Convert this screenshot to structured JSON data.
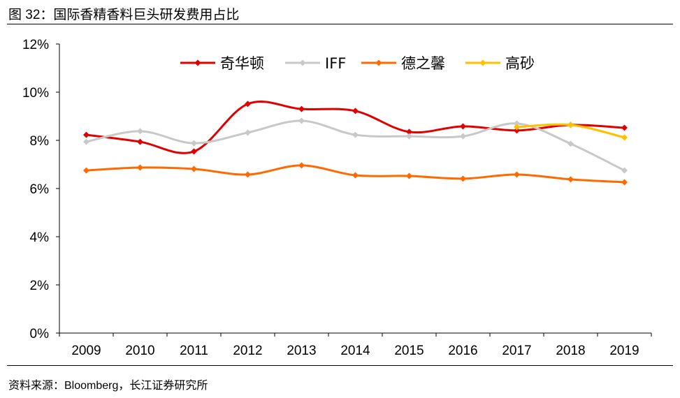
{
  "title": "图 32：国际香精香料巨头研发费用占比",
  "source": "资料来源：Bloomberg，长江证券研究所",
  "chart_data": {
    "type": "line",
    "categories": [
      "2009",
      "2010",
      "2011",
      "2012",
      "2013",
      "2014",
      "2015",
      "2016",
      "2017",
      "2018",
      "2019"
    ],
    "yticks": [
      "0%",
      "2%",
      "4%",
      "6%",
      "8%",
      "10%",
      "12%"
    ],
    "ylim": [
      0,
      12
    ],
    "grid": false,
    "legend": "top",
    "smooth": true,
    "series": [
      {
        "name": "奇华顿",
        "color": "#E00000",
        "values": [
          8.23,
          7.94,
          7.54,
          9.51,
          9.3,
          9.22,
          8.35,
          8.58,
          8.41,
          8.64,
          8.52
        ]
      },
      {
        "name": "IFF",
        "color": "#C8C8C8",
        "values": [
          7.94,
          8.38,
          7.88,
          8.32,
          8.81,
          8.23,
          8.17,
          8.17,
          8.7,
          7.86,
          6.75
        ]
      },
      {
        "name": "德之馨",
        "color": "#FF6A00",
        "values": [
          6.75,
          6.87,
          6.81,
          6.58,
          6.96,
          6.55,
          6.52,
          6.41,
          6.58,
          6.38,
          6.26
        ]
      },
      {
        "name": "高砂",
        "color": "#FFC000",
        "values": [
          null,
          null,
          null,
          null,
          null,
          null,
          null,
          null,
          8.55,
          8.64,
          8.12
        ]
      }
    ]
  }
}
